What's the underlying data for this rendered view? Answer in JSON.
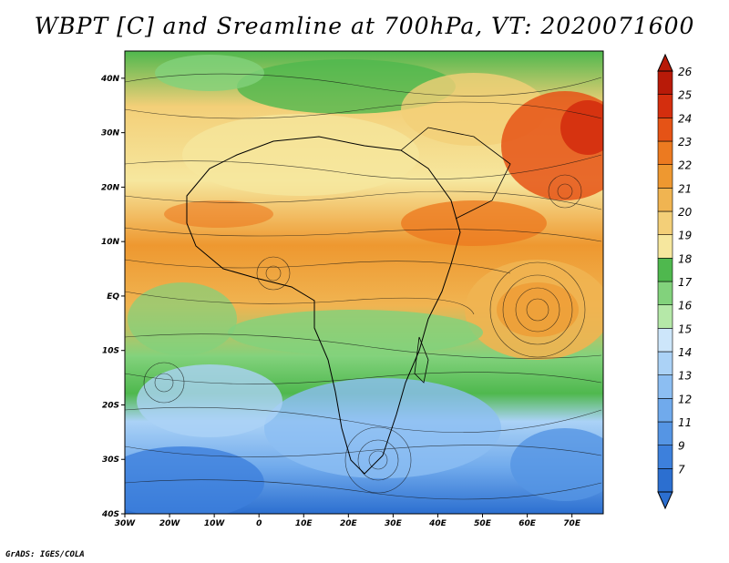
{
  "title": "WBPT [C] and Sreamline at 700hPa, VT: 2020071600",
  "credit": "GrADS: IGES/COLA",
  "map": {
    "lat_labels": [
      "40N",
      "30N",
      "20N",
      "10N",
      "EQ",
      "10S",
      "20S",
      "30S",
      "40S"
    ],
    "lat_values": [
      40,
      30,
      20,
      10,
      0,
      -10,
      -20,
      -30,
      -40
    ],
    "lon_labels": [
      "30W",
      "20W",
      "10W",
      "0",
      "10E",
      "20E",
      "30E",
      "40E",
      "50E",
      "60E",
      "70E"
    ],
    "lon_values": [
      -30,
      -20,
      -10,
      0,
      10,
      20,
      30,
      40,
      50,
      60,
      70
    ],
    "lon_range": [
      -30,
      77
    ],
    "lat_range": [
      -40,
      45
    ]
  },
  "colorbar": {
    "labels": [
      "7",
      "9",
      "11",
      "12",
      "13",
      "14",
      "15",
      "16",
      "17",
      "18",
      "19",
      "20",
      "21",
      "22",
      "23",
      "24",
      "25",
      "26"
    ],
    "colors": [
      "#2c6fd0",
      "#3d80dc",
      "#5595e4",
      "#70aaec",
      "#8cbef2",
      "#abd2f6",
      "#cde6fa",
      "#b5e8a8",
      "#82d27c",
      "#4fb84e",
      "#f6e79e",
      "#f3cf78",
      "#f0b451",
      "#ee9830",
      "#ec7a20",
      "#e55316",
      "#d42e0e",
      "#b81a08"
    ]
  }
}
